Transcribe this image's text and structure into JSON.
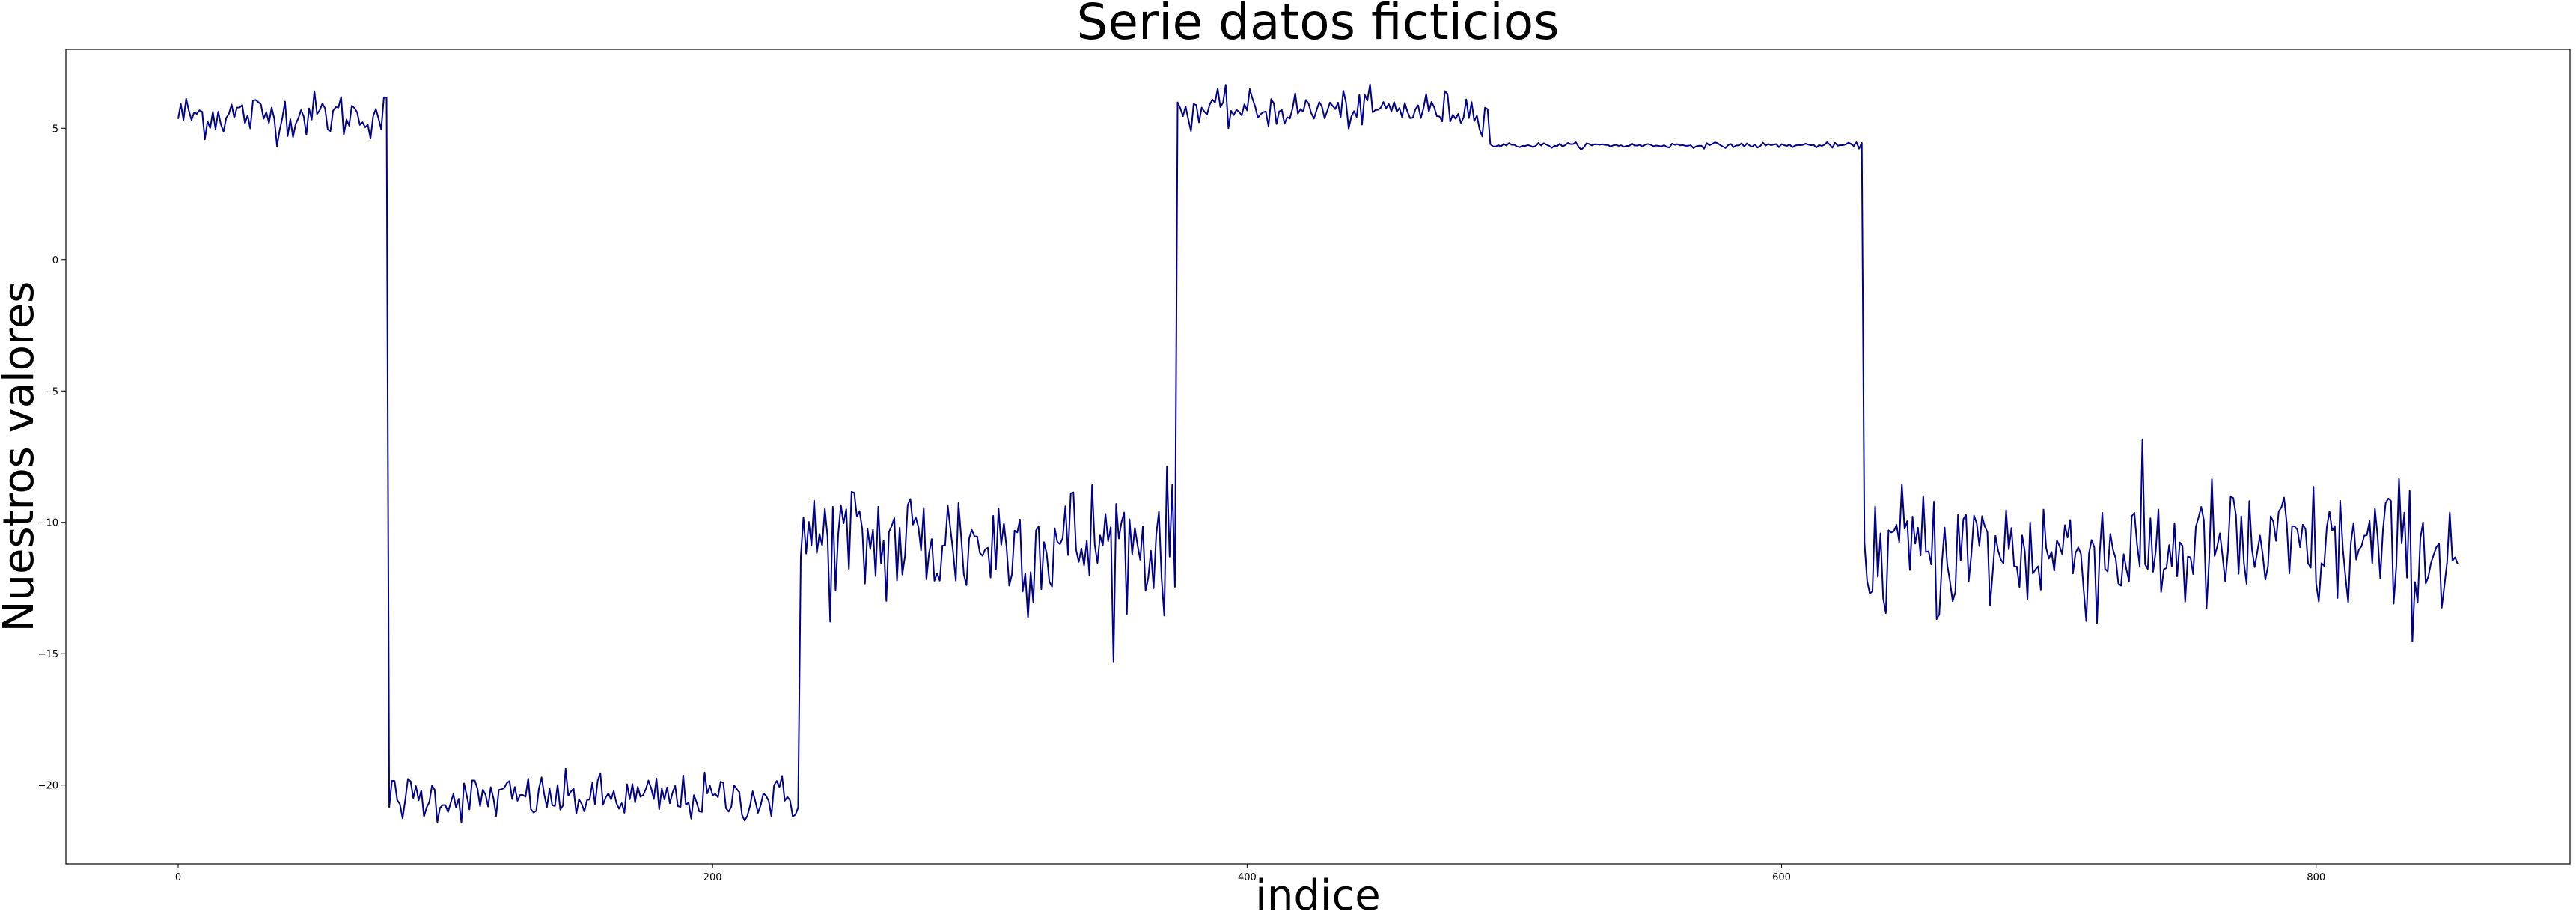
{
  "chart_data": {
    "type": "line",
    "title": "Serie datos ficticios",
    "xlabel": "indice",
    "ylabel": "Nuestros valores",
    "xlim": [
      -42,
      895
    ],
    "ylim": [
      -23,
      8
    ],
    "xticks": [
      0,
      200,
      400,
      600,
      800
    ],
    "yticks": [
      -20,
      -15,
      -10,
      -5,
      0,
      5
    ],
    "xtick_labels": [
      "0",
      "200",
      "400",
      "600",
      "800"
    ],
    "ytick_labels": [
      "−20",
      "−15",
      "−10",
      "−5",
      "0",
      "5"
    ],
    "grid": false,
    "color": "#00008b",
    "segments": [
      {
        "x_start": 0,
        "x_end": 78,
        "mean": 5.5,
        "noise": 0.45
      },
      {
        "x_start": 79,
        "x_end": 232,
        "mean": -20.5,
        "noise": 0.45
      },
      {
        "x_start": 233,
        "x_end": 373,
        "mean": -10.8,
        "noise": 1.3
      },
      {
        "x_start": 374,
        "x_end": 490,
        "mean": 5.7,
        "noise": 0.35
      },
      {
        "x_start": 491,
        "x_end": 630,
        "mean": 4.35,
        "noise": 0.05
      },
      {
        "x_start": 631,
        "x_end": 853,
        "mean": -11.1,
        "noise": 1.3
      }
    ]
  }
}
